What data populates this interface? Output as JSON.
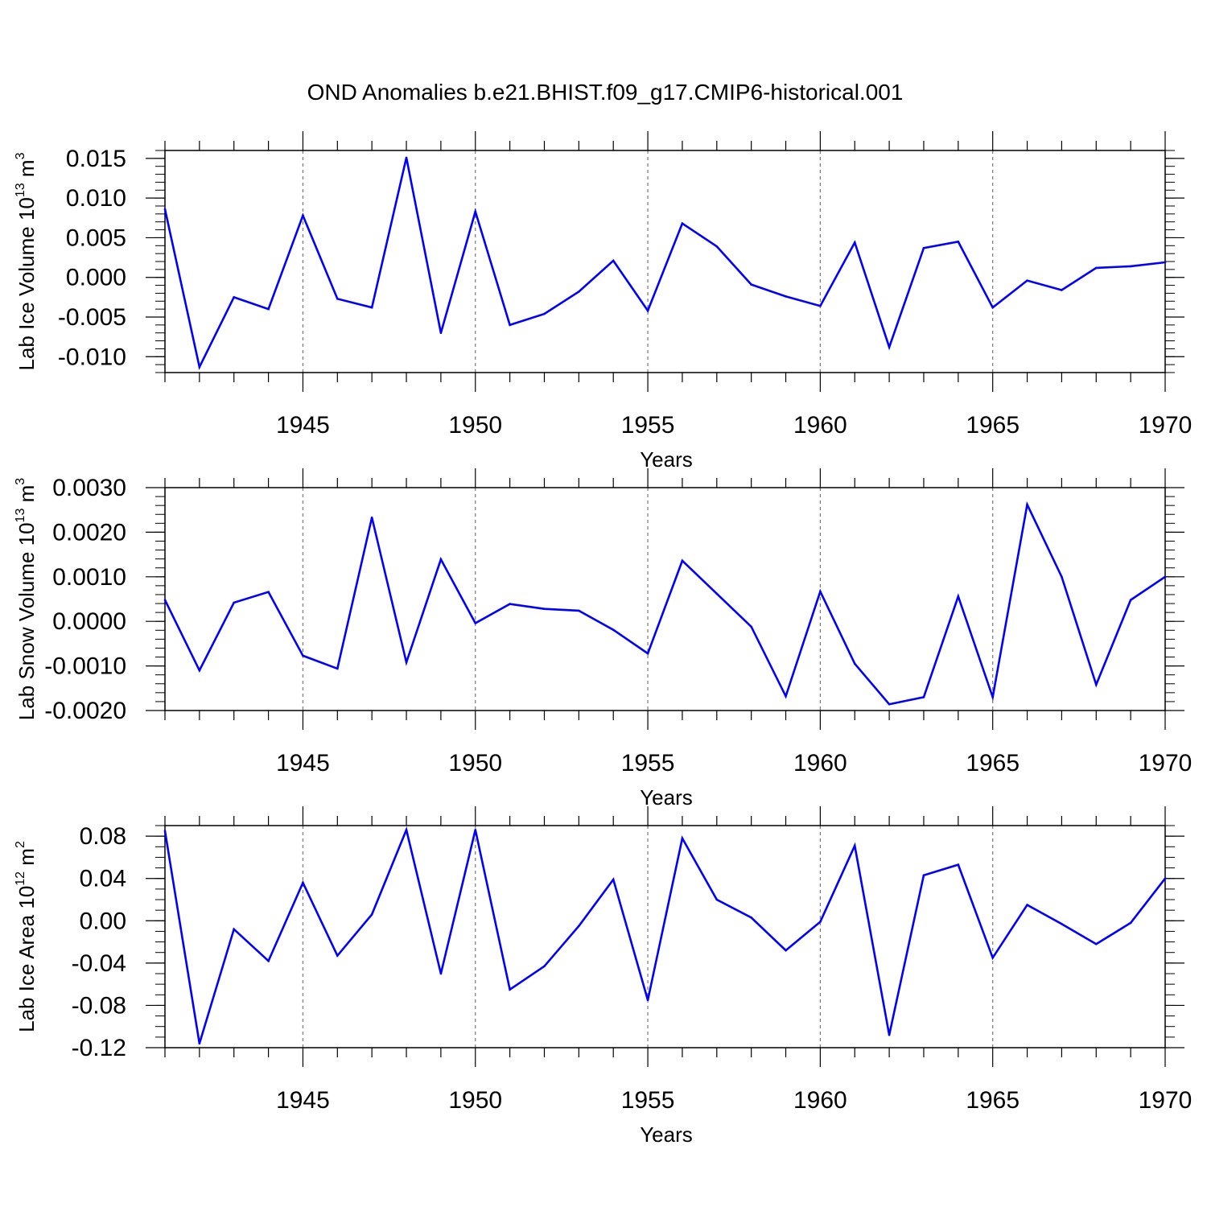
{
  "title": "OND Anomalies b.e21.BHIST.f09_g17.CMIP6-historical.001",
  "line_color": "#0000ff",
  "chart_data": [
    {
      "type": "line",
      "ylabel_main": "Lab Ice Volume 10",
      "ylabel_exp": "13",
      "ylabel_unit": "m",
      "ylabel_unit_exp": "3",
      "xlabel": "Years",
      "xlim": [
        1941,
        1970
      ],
      "ylim": [
        -0.012,
        0.016
      ],
      "xticks": [
        1945,
        1950,
        1955,
        1960,
        1965,
        1970
      ],
      "xtick_labels": [
        "1945",
        "1950",
        "1955",
        "1960",
        "1965",
        "1970"
      ],
      "yticks": [
        -0.01,
        -0.005,
        0.0,
        0.005,
        0.01,
        0.015
      ],
      "ytick_labels": [
        "-0.010",
        "-0.005",
        "0.000",
        "0.005",
        "0.010",
        "0.015"
      ],
      "ymin_step": 0.001,
      "x": [
        1941,
        1942,
        1943,
        1944,
        1945,
        1946,
        1947,
        1948,
        1949,
        1950,
        1951,
        1952,
        1953,
        1954,
        1955,
        1956,
        1957,
        1958,
        1959,
        1960,
        1961,
        1962,
        1963,
        1964,
        1965,
        1966,
        1967,
        1968,
        1969,
        1970
      ],
      "values": [
        0.0086,
        -0.0113,
        -0.0025,
        -0.004,
        0.0078,
        -0.0027,
        -0.0038,
        0.0151,
        -0.007,
        0.0083,
        -0.006,
        -0.0046,
        -0.0018,
        0.0021,
        -0.0042,
        0.0068,
        0.0039,
        -0.0009,
        -0.0024,
        -0.0036,
        0.0044,
        -0.0088,
        0.0037,
        0.0045,
        -0.0038,
        -0.0004,
        -0.0016,
        0.0012,
        0.0014,
        0.0019
      ]
    },
    {
      "type": "line",
      "ylabel_main": "Lab Snow Volume 10",
      "ylabel_exp": "13",
      "ylabel_unit": "m",
      "ylabel_unit_exp": "3",
      "xlabel": "Years",
      "xlim": [
        1941,
        1970
      ],
      "ylim": [
        -0.002,
        0.003
      ],
      "xticks": [
        1945,
        1950,
        1955,
        1960,
        1965,
        1970
      ],
      "xtick_labels": [
        "1945",
        "1950",
        "1955",
        "1960",
        "1965",
        "1970"
      ],
      "yticks": [
        -0.002,
        -0.001,
        0.0,
        0.001,
        0.002,
        0.003
      ],
      "ytick_labels": [
        "-0.0020",
        "-0.0010",
        "0.0000",
        "0.0010",
        "0.0020",
        "0.0030"
      ],
      "ymin_step": 0.0002,
      "x": [
        1941,
        1942,
        1943,
        1944,
        1945,
        1946,
        1947,
        1948,
        1949,
        1950,
        1951,
        1952,
        1953,
        1954,
        1955,
        1956,
        1957,
        1958,
        1959,
        1960,
        1961,
        1962,
        1963,
        1964,
        1965,
        1966,
        1967,
        1968,
        1969,
        1970
      ],
      "values": [
        0.00048,
        -0.0011,
        0.00042,
        0.00066,
        -0.00077,
        -0.00106,
        0.00233,
        -0.00092,
        0.00139,
        -4e-05,
        0.00039,
        0.00028,
        0.00024,
        -0.00019,
        -0.00072,
        0.00136,
        0.00062,
        -0.00012,
        -0.00168,
        0.00067,
        -0.00095,
        -0.00186,
        -0.0017,
        0.00056,
        -0.0017,
        0.00262,
        0.001,
        -0.00142,
        0.00048,
        0.001
      ]
    },
    {
      "type": "line",
      "ylabel_main": "Lab Ice Area 10",
      "ylabel_exp": "12",
      "ylabel_unit": "m",
      "ylabel_unit_exp": "2",
      "xlabel": "Years",
      "xlim": [
        1941,
        1970
      ],
      "ylim": [
        -0.12,
        0.09
      ],
      "xticks": [
        1945,
        1950,
        1955,
        1960,
        1965,
        1970
      ],
      "xtick_labels": [
        "1945",
        "1950",
        "1955",
        "1960",
        "1965",
        "1970"
      ],
      "yticks": [
        -0.12,
        -0.08,
        -0.04,
        0.0,
        0.04,
        0.08
      ],
      "ytick_labels": [
        "-0.12",
        "-0.08",
        "-0.04",
        "0.00",
        "0.04",
        "0.08"
      ],
      "ymin_step": 0.01,
      "x": [
        1941,
        1942,
        1943,
        1944,
        1945,
        1946,
        1947,
        1948,
        1949,
        1950,
        1951,
        1952,
        1953,
        1954,
        1955,
        1956,
        1957,
        1958,
        1959,
        1960,
        1961,
        1962,
        1963,
        1964,
        1965,
        1966,
        1967,
        1968,
        1969,
        1970
      ],
      "values": [
        0.085,
        -0.116,
        -0.008,
        -0.038,
        0.036,
        -0.033,
        0.006,
        0.086,
        -0.05,
        0.086,
        -0.065,
        -0.043,
        -0.005,
        0.039,
        -0.075,
        0.078,
        0.02,
        0.003,
        -0.028,
        -0.001,
        0.071,
        -0.108,
        0.043,
        0.053,
        -0.035,
        0.015,
        -0.003,
        -0.022,
        -0.002,
        0.04
      ]
    }
  ]
}
